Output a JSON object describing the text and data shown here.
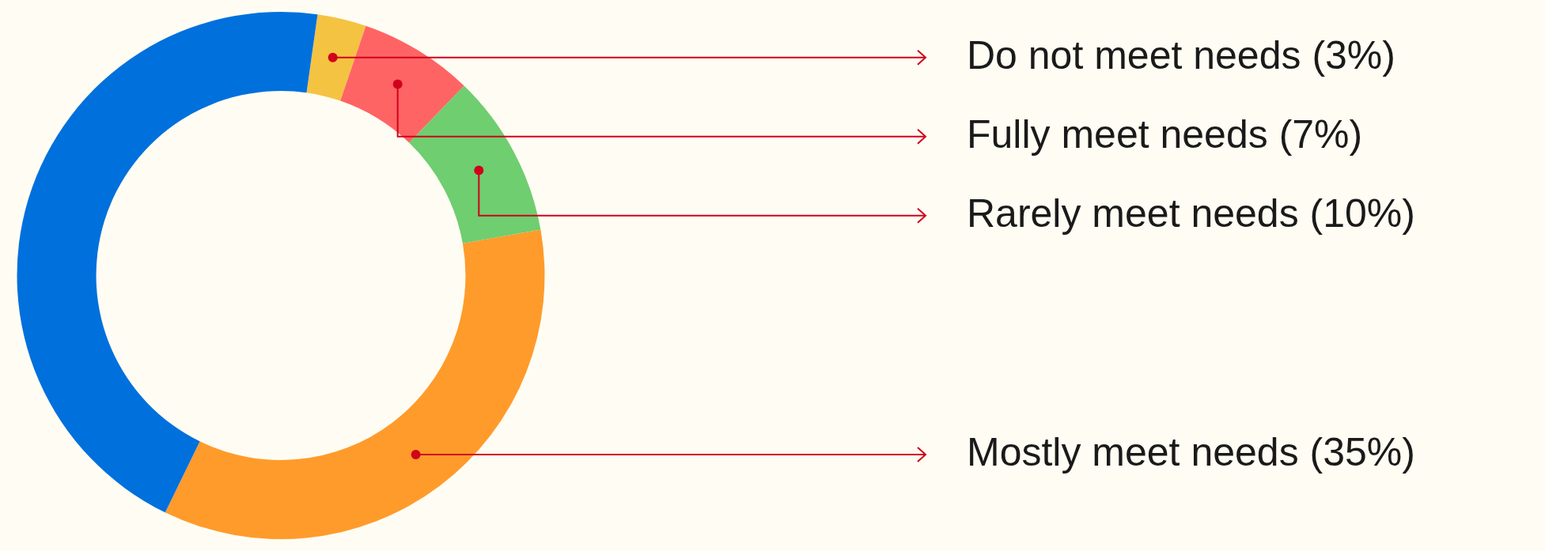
{
  "chart_data": {
    "type": "donut",
    "categories": [
      "Do not meet needs (3%)",
      "Fully meet needs (7%)",
      "Rarely meet needs (10%)",
      "Mostly meet needs (35%)",
      null
    ],
    "values": [
      3,
      7,
      10,
      35,
      45
    ],
    "colors": [
      "#f5c342",
      "#ff6464",
      "#6fce6f",
      "#ff9b2b",
      "#0070dd"
    ],
    "legend": false
  }
}
